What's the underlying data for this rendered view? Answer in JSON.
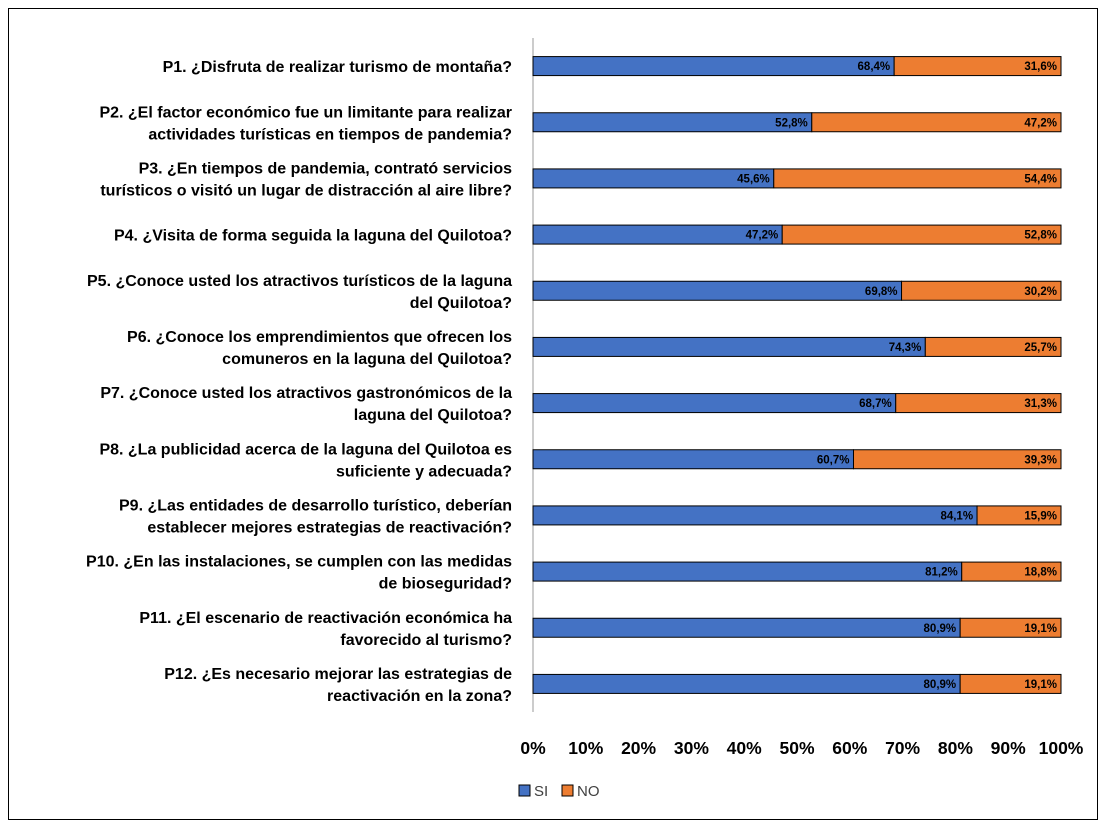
{
  "chart_data": {
    "type": "bar",
    "stacked": true,
    "orientation": "horizontal",
    "percent_stacked": true,
    "categories": [
      [
        "P1. ¿Disfruta de realizar turismo de montaña?"
      ],
      [
        "P2. ¿El factor económico fue un limitante para realizar",
        "actividades turísticas en tiempos de pandemia?"
      ],
      [
        "P3. ¿En tiempos de pandemia, contrató servicios",
        "turísticos o visitó un lugar de distracción al aire libre?"
      ],
      [
        "P4. ¿Visita de forma seguida la laguna del Quilotoa?"
      ],
      [
        "P5. ¿Conoce usted los atractivos turísticos de la laguna",
        "del Quilotoa?"
      ],
      [
        "P6. ¿Conoce los emprendimientos que ofrecen los",
        "comuneros en la laguna del Quilotoa?"
      ],
      [
        "P7. ¿Conoce usted los atractivos gastronómicos de la",
        "laguna del Quilotoa?"
      ],
      [
        "P8. ¿La publicidad acerca de la laguna del Quilotoa es",
        "suficiente y adecuada?"
      ],
      [
        "P9. ¿Las entidades de desarrollo turístico, deberían",
        "establecer mejores estrategias de reactivación?"
      ],
      [
        "P10. ¿En las instalaciones, se cumplen con las medidas",
        "de bioseguridad?"
      ],
      [
        "P11. ¿El escenario de reactivación económica ha",
        "favorecido al turismo?"
      ],
      [
        "P12. ¿Es necesario mejorar las estrategias de",
        "reactivación en la zona?"
      ]
    ],
    "series": [
      {
        "name": "SI",
        "color": "#4472C4",
        "values": [
          68.4,
          52.8,
          45.6,
          47.2,
          69.8,
          74.3,
          68.7,
          60.7,
          84.1,
          81.2,
          80.9,
          80.9
        ],
        "labels": [
          "68,4%",
          "52,8%",
          "45,6%",
          "47,2%",
          "69,8%",
          "74,3%",
          "68,7%",
          "60,7%",
          "84,1%",
          "81,2%",
          "80,9%",
          "80,9%"
        ]
      },
      {
        "name": "NO",
        "color": "#ED7D31",
        "values": [
          31.6,
          47.2,
          54.4,
          52.8,
          30.2,
          25.7,
          31.3,
          39.3,
          15.9,
          18.8,
          19.1,
          19.1
        ],
        "labels": [
          "31,6%",
          "47,2%",
          "54,4%",
          "52,8%",
          "30,2%",
          "25,7%",
          "31,3%",
          "39,3%",
          "15,9%",
          "18,8%",
          "19,1%",
          "19,1%"
        ]
      }
    ],
    "xlim": [
      0,
      100
    ],
    "x_ticks": [
      "0%",
      "10%",
      "20%",
      "30%",
      "40%",
      "50%",
      "60%",
      "70%",
      "80%",
      "90%",
      "100%"
    ],
    "grid": false,
    "legend_position": "bottom",
    "title": "",
    "xlabel": "",
    "ylabel": ""
  }
}
